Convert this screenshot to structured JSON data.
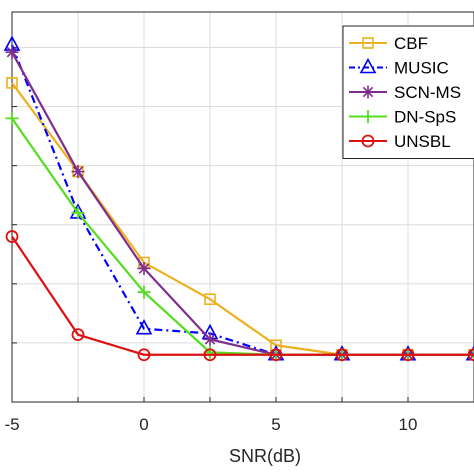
{
  "chart_data": {
    "type": "line",
    "title": "",
    "xlabel": "SNR(dB)",
    "ylabel": "",
    "xlim": [
      -5,
      12.5
    ],
    "ylim": [
      0,
      3.3
    ],
    "x_tick_labels": [
      "-5",
      "0",
      "5",
      "10"
    ],
    "y_tick_labels": [
      "",
      "",
      ""
    ],
    "grid": true,
    "legend_position": "top-right",
    "x": [
      -5,
      -2.5,
      0,
      2.5,
      5,
      7.5,
      10,
      12.5
    ],
    "series": [
      {
        "name": "CBF",
        "color": "#EDB120",
        "line": "solid",
        "marker": "square",
        "values": [
          2.7,
          1.95,
          1.18,
          0.87,
          0.48,
          0.4,
          0.4,
          0.4
        ]
      },
      {
        "name": "MUSIC",
        "color": "#0000FF",
        "line": "dashdot",
        "marker": "triangle",
        "values": [
          3.02,
          1.6,
          0.62,
          0.58,
          0.4,
          0.4,
          0.4,
          0.4
        ]
      },
      {
        "name": "SCN-MS",
        "color": "#7E2F8E",
        "line": "solid",
        "marker": "asterisk",
        "values": [
          2.96,
          1.95,
          1.13,
          0.53,
          0.4,
          0.4,
          0.4,
          0.4
        ]
      },
      {
        "name": "DN-SpS",
        "color": "#55DD22",
        "line": "solid",
        "marker": "plus",
        "values": [
          2.4,
          1.6,
          0.93,
          0.42,
          0.4,
          0.4,
          0.4,
          0.4
        ]
      },
      {
        "name": "UNSBL",
        "color": "#DD1111",
        "line": "solid",
        "marker": "circle",
        "values": [
          1.4,
          0.57,
          0.4,
          0.4,
          0.4,
          0.4,
          0.4,
          0.4
        ]
      }
    ]
  }
}
